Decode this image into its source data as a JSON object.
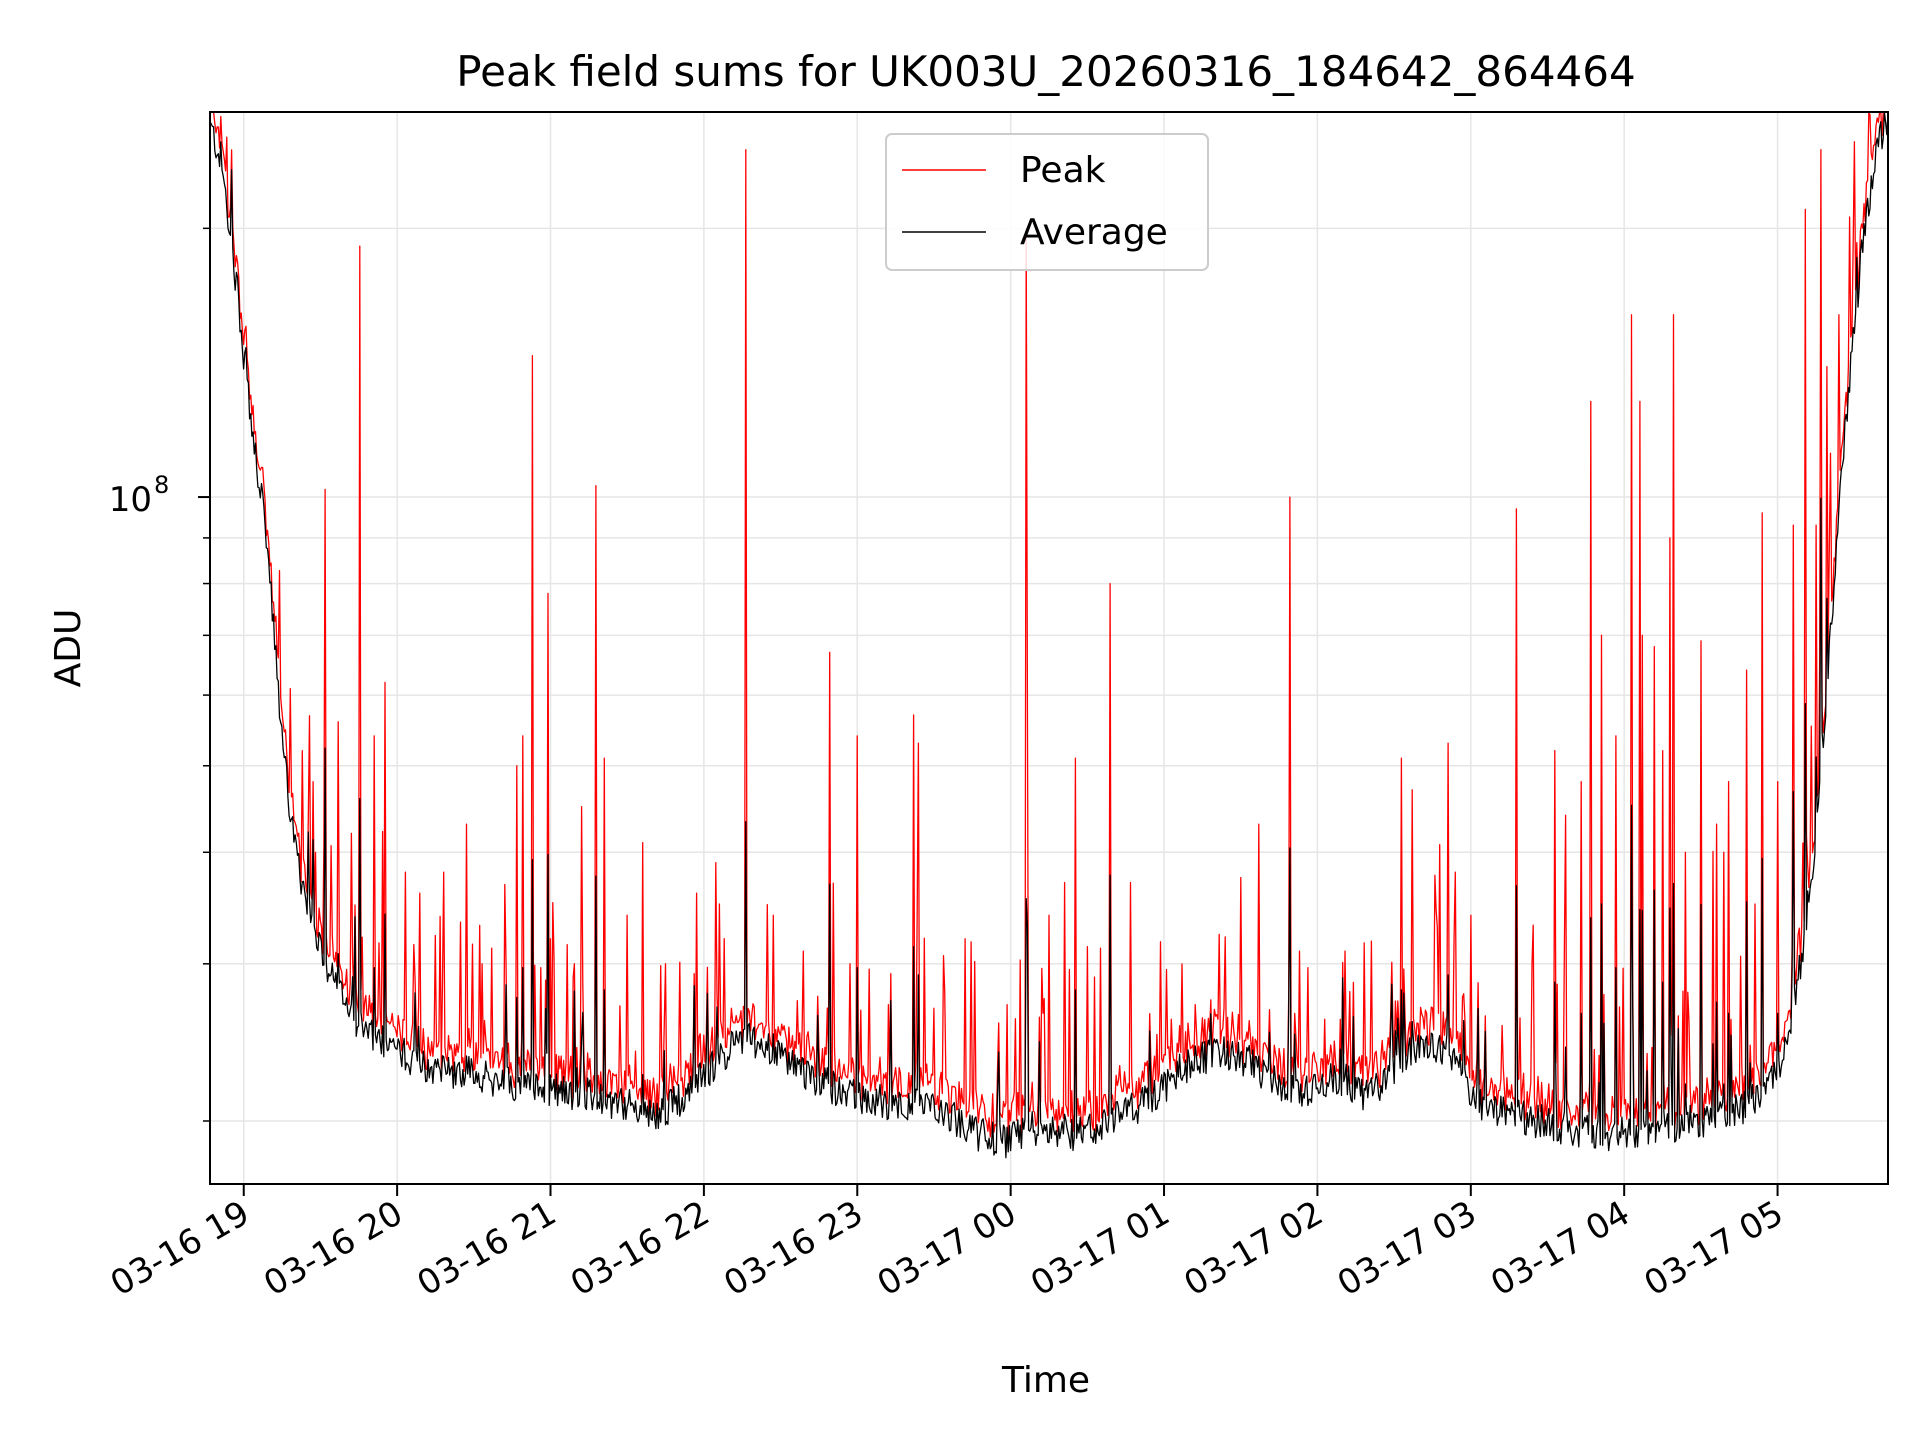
{
  "chart_data": {
    "type": "line",
    "title": "Peak field sums for UK003U_20260316_184642_864464",
    "xlabel": "Time",
    "ylabel": "ADU",
    "yscale": "log",
    "ylim": [
      17000000,
      270000000
    ],
    "xlim_hours": [
      18.78,
      29.72
    ],
    "x_ticks": [
      {
        "hour": 19,
        "label": "03-16 19"
      },
      {
        "hour": 20,
        "label": "03-16 20"
      },
      {
        "hour": 21,
        "label": "03-16 21"
      },
      {
        "hour": 22,
        "label": "03-16 22"
      },
      {
        "hour": 23,
        "label": "03-16 23"
      },
      {
        "hour": 24,
        "label": "03-17 00"
      },
      {
        "hour": 25,
        "label": "03-17 01"
      },
      {
        "hour": 26,
        "label": "03-17 02"
      },
      {
        "hour": 27,
        "label": "03-17 03"
      },
      {
        "hour": 28,
        "label": "03-17 04"
      },
      {
        "hour": 29,
        "label": "03-17 05"
      }
    ],
    "y_major_tick": {
      "value": 100000000,
      "label_base": "10",
      "label_exp": "8"
    },
    "y_minor_ticks": [
      20000000,
      30000000,
      40000000,
      50000000,
      60000000,
      70000000,
      80000000,
      90000000,
      200000000
    ],
    "grid": true,
    "legend": {
      "position": "top-center",
      "entries": [
        "Peak",
        "Average"
      ]
    },
    "series": [
      {
        "name": "Average",
        "color": "#000000",
        "points": [
          [
            18.78,
            260000000
          ],
          [
            18.85,
            240000000
          ],
          [
            18.95,
            175000000
          ],
          [
            19.05,
            120000000
          ],
          [
            19.15,
            90000000
          ],
          [
            19.22,
            62000000
          ],
          [
            19.3,
            45000000
          ],
          [
            19.38,
            36000000
          ],
          [
            19.5,
            31000000
          ],
          [
            19.6,
            28500000
          ],
          [
            19.7,
            26500000
          ],
          [
            19.8,
            25000000
          ],
          [
            19.9,
            24500000
          ],
          [
            20.0,
            24000000
          ],
          [
            20.15,
            23200000
          ],
          [
            20.3,
            22800000
          ],
          [
            20.5,
            22500000
          ],
          [
            20.7,
            22200000
          ],
          [
            20.9,
            21800000
          ],
          [
            21.1,
            21600000
          ],
          [
            21.3,
            21300000
          ],
          [
            21.5,
            20800000
          ],
          [
            21.7,
            20300000
          ],
          [
            21.85,
            21200000
          ],
          [
            22.0,
            22500000
          ],
          [
            22.15,
            24000000
          ],
          [
            22.3,
            24800000
          ],
          [
            22.45,
            24000000
          ],
          [
            22.6,
            23000000
          ],
          [
            22.8,
            22000000
          ],
          [
            23.0,
            21300000
          ],
          [
            23.2,
            21000000
          ],
          [
            23.4,
            20800000
          ],
          [
            23.6,
            20300000
          ],
          [
            23.8,
            19300000
          ],
          [
            23.95,
            19000000
          ],
          [
            24.05,
            19200000
          ],
          [
            24.2,
            19800000
          ],
          [
            24.35,
            19300000
          ],
          [
            24.5,
            19500000
          ],
          [
            24.7,
            20300000
          ],
          [
            24.9,
            21100000
          ],
          [
            25.0,
            21800000
          ],
          [
            25.1,
            22800000
          ],
          [
            25.25,
            23500000
          ],
          [
            25.4,
            23800000
          ],
          [
            25.55,
            23300000
          ],
          [
            25.7,
            22300000
          ],
          [
            25.85,
            21500000
          ],
          [
            26.0,
            22000000
          ],
          [
            26.15,
            22400000
          ],
          [
            26.3,
            21500000
          ],
          [
            26.45,
            22300000
          ],
          [
            26.6,
            24000000
          ],
          [
            26.75,
            24300000
          ],
          [
            26.9,
            23800000
          ],
          [
            27.0,
            21200000
          ],
          [
            27.15,
            20700000
          ],
          [
            27.3,
            20300000
          ],
          [
            27.5,
            19900000
          ],
          [
            27.7,
            19500000
          ],
          [
            27.85,
            19300000
          ],
          [
            28.0,
            19400000
          ],
          [
            28.2,
            19600000
          ],
          [
            28.4,
            19900000
          ],
          [
            28.6,
            20200000
          ],
          [
            28.8,
            20800000
          ],
          [
            28.95,
            21800000
          ],
          [
            29.05,
            24000000
          ],
          [
            29.15,
            30000000
          ],
          [
            29.25,
            42000000
          ],
          [
            29.35,
            72000000
          ],
          [
            29.45,
            125000000
          ],
          [
            29.55,
            190000000
          ],
          [
            29.65,
            245000000
          ],
          [
            29.72,
            268000000
          ]
        ]
      },
      {
        "name": "Peak",
        "color": "#ff0000",
        "spikes": [
          [
            19.3,
            61000000
          ],
          [
            19.38,
            52000000
          ],
          [
            19.45,
            48000000
          ],
          [
            19.52,
            41000000
          ],
          [
            19.53,
            102000000
          ],
          [
            19.62,
            56000000
          ],
          [
            19.7,
            42000000
          ],
          [
            19.76,
            191000000
          ],
          [
            19.85,
            54000000
          ],
          [
            19.92,
            62000000
          ],
          [
            20.05,
            38000000
          ],
          [
            20.15,
            36000000
          ],
          [
            20.3,
            38000000
          ],
          [
            20.45,
            43000000
          ],
          [
            20.55,
            30000000
          ],
          [
            20.7,
            31000000
          ],
          [
            20.78,
            50000000
          ],
          [
            20.82,
            54000000
          ],
          [
            20.88,
            144000000
          ],
          [
            20.98,
            78000000
          ],
          [
            21.0,
            32000000
          ],
          [
            21.2,
            45000000
          ],
          [
            21.3,
            103000000
          ],
          [
            21.35,
            51000000
          ],
          [
            21.5,
            34000000
          ],
          [
            21.6,
            41000000
          ],
          [
            21.75,
            30000000
          ],
          [
            21.95,
            36000000
          ],
          [
            22.1,
            35000000
          ],
          [
            22.27,
            245000000
          ],
          [
            22.45,
            34000000
          ],
          [
            22.65,
            31000000
          ],
          [
            22.82,
            67000000
          ],
          [
            22.95,
            30000000
          ],
          [
            23.0,
            54000000
          ],
          [
            23.2,
            27000000
          ],
          [
            23.37,
            57000000
          ],
          [
            23.4,
            53000000
          ],
          [
            23.57,
            28000000
          ],
          [
            23.7,
            32000000
          ],
          [
            23.98,
            27000000
          ],
          [
            24.1,
            200000000
          ],
          [
            24.11,
            60000000
          ],
          [
            24.25,
            34000000
          ],
          [
            24.35,
            37000000
          ],
          [
            24.42,
            51000000
          ],
          [
            24.55,
            29000000
          ],
          [
            24.65,
            80000000
          ],
          [
            24.78,
            37000000
          ],
          [
            24.95,
            25000000
          ],
          [
            25.05,
            26000000
          ],
          [
            25.2,
            27000000
          ],
          [
            25.35,
            26000000
          ],
          [
            25.5,
            33000000
          ],
          [
            25.62,
            43000000
          ],
          [
            25.82,
            100000000
          ],
          [
            25.88,
            31000000
          ],
          [
            26.05,
            26000000
          ],
          [
            26.18,
            31000000
          ],
          [
            26.35,
            25000000
          ],
          [
            26.55,
            51000000
          ],
          [
            26.62,
            47000000
          ],
          [
            26.78,
            33000000
          ],
          [
            26.85,
            53000000
          ],
          [
            26.9,
            38000000
          ],
          [
            27.0,
            34000000
          ],
          [
            27.2,
            24000000
          ],
          [
            27.3,
            97000000
          ],
          [
            27.4,
            30000000
          ],
          [
            27.55,
            52000000
          ],
          [
            27.62,
            44000000
          ],
          [
            27.72,
            48000000
          ],
          [
            27.78,
            128000000
          ],
          [
            27.85,
            70000000
          ],
          [
            27.95,
            54000000
          ],
          [
            28.05,
            160000000
          ],
          [
            28.1,
            128000000
          ],
          [
            28.12,
            70000000
          ],
          [
            28.2,
            68000000
          ],
          [
            28.25,
            52000000
          ],
          [
            28.3,
            90000000
          ],
          [
            28.32,
            160000000
          ],
          [
            28.4,
            40000000
          ],
          [
            28.5,
            69000000
          ],
          [
            28.6,
            43000000
          ],
          [
            28.65,
            40000000
          ],
          [
            28.68,
            48000000
          ],
          [
            28.8,
            64000000
          ],
          [
            28.85,
            35000000
          ],
          [
            28.9,
            96000000
          ],
          [
            29.0,
            48000000
          ],
          [
            29.1,
            93000000
          ],
          [
            29.18,
            210000000
          ],
          [
            29.25,
            93000000
          ],
          [
            29.28,
            245000000
          ],
          [
            29.32,
            140000000
          ],
          [
            29.4,
            160000000
          ],
          [
            29.5,
            250000000
          ],
          [
            29.6,
            268000000
          ]
        ]
      }
    ]
  }
}
